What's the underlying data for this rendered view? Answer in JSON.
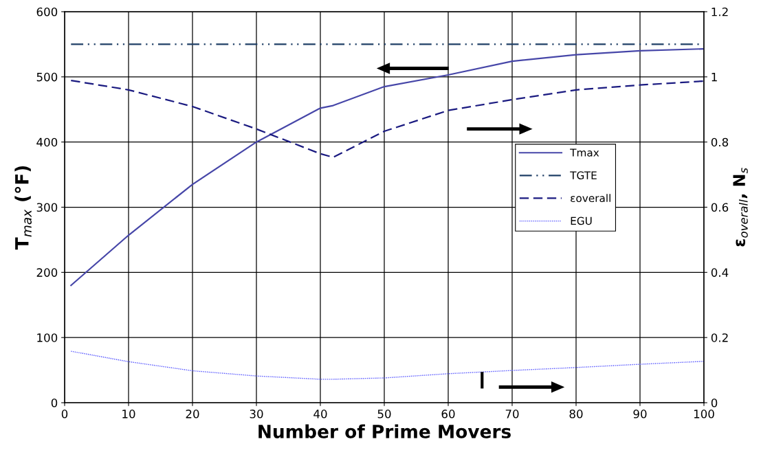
{
  "chart_data": {
    "type": "line",
    "xlabel": "Number of Prime Movers",
    "ylabel": "T$_{max}$ (°F)",
    "y2label": "ε$_{overall}$, N$_{s}$",
    "xlim": [
      0,
      100
    ],
    "xticks": [
      0,
      10,
      20,
      30,
      40,
      50,
      60,
      70,
      80,
      90,
      100
    ],
    "ylim": [
      0,
      600
    ],
    "yticks": [
      0,
      100,
      200,
      300,
      400,
      500,
      600
    ],
    "y2lim": [
      0,
      1.2
    ],
    "y2ticks": [
      0,
      0.2,
      0.4,
      0.6,
      0.8,
      1,
      1.2
    ],
    "grid": true,
    "legend": "right",
    "marker": "none",
    "series": [
      {
        "name": "Tmax",
        "color": "#4646a8",
        "line_style": "solid",
        "x": [
          1,
          10,
          20,
          30,
          40,
          42,
          50,
          60,
          70,
          80,
          90,
          100
        ],
        "values": [
          180,
          257,
          335,
          400,
          452,
          456,
          485,
          503,
          524,
          534,
          540,
          543
        ]
      },
      {
        "name": "TGTE",
        "color": "#1f3f66",
        "line_style": "dashdot",
        "x": [
          1,
          100
        ],
        "values": [
          550,
          550
        ]
      },
      {
        "name": "εoverall",
        "color": "#1a1a80",
        "line_style": "dashed",
        "axis": "y2",
        "x": [
          1,
          10,
          20,
          30,
          40,
          42,
          50,
          60,
          70,
          80,
          90,
          100
        ],
        "values": [
          0.989,
          0.96,
          0.909,
          0.84,
          0.764,
          0.753,
          0.833,
          0.897,
          0.93,
          0.96,
          0.975,
          0.987
        ]
      },
      {
        "name": "EGU",
        "color": "#5050ff",
        "line_style": "dotted",
        "axis": "y2",
        "x": [
          1,
          10,
          20,
          30,
          40,
          42,
          50,
          60,
          70,
          80,
          90,
          100
        ],
        "values": [
          0.158,
          0.126,
          0.098,
          0.082,
          0.072,
          0.072,
          0.076,
          0.089,
          0.099,
          0.108,
          0.118,
          0.127
        ]
      }
    ]
  }
}
